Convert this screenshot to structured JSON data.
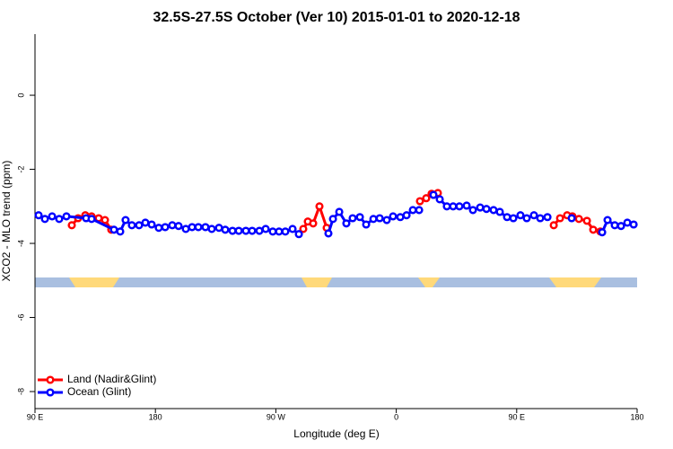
{
  "chart_data": {
    "type": "line",
    "title": "32.5S-27.5S October (Ver 10)   2015-01-01 to 2020-12-18",
    "x_label": "Longitude (deg E)",
    "y_label": "XCO2 - MLO trend (ppm)",
    "xlim": [
      90,
      540
    ],
    "ylim": [
      -8.46,
      1.65
    ],
    "xticks": [
      {
        "value": 90,
        "label": "90 E"
      },
      180,
      {
        "value": 270,
        "label": "90 W"
      },
      {
        "value": 360,
        "label": "0"
      },
      {
        "value": 450,
        "label": "90 E"
      },
      {
        "value": 540,
        "label": "180"
      }
    ],
    "yticks": [
      0,
      -2,
      -4,
      -6,
      -8
    ],
    "legend": "bottom-left",
    "series": [
      {
        "name": "Land (Nadir&Glint)",
        "color": "#ff0000",
        "x": [
          117.5,
          122.2,
          127.6,
          132.3,
          137.6,
          142.3,
          147.0,
          null,
          290.5,
          293.9,
          297.9,
          302.6,
          308.0,
          null,
          377.7,
          382.4,
          386.4,
          391.1,
          null,
          477.7,
          482.4,
          487.7,
          491.7,
          496.5,
          502.5,
          507.2,
          512.5
        ],
        "values": [
          -3.51,
          -3.32,
          -3.24,
          -3.27,
          -3.32,
          -3.37,
          -3.63,
          null,
          -3.61,
          -3.41,
          -3.46,
          -3.0,
          -3.58,
          null,
          -2.86,
          -2.78,
          -2.66,
          -2.64,
          null,
          -3.51,
          -3.32,
          -3.24,
          -3.27,
          -3.34,
          -3.39,
          -3.63,
          -3.68
        ]
      },
      {
        "name": "Ocean (Glint)",
        "color": "#0000ff",
        "x": [
          92.7,
          97.4,
          102.8,
          108.1,
          113.5,
          128.2,
          132.3,
          149.0,
          153.7,
          157.7,
          162.4,
          167.8,
          172.5,
          177.2,
          182.5,
          187.3,
          192.6,
          197.3,
          202.7,
          207.4,
          212.1,
          217.4,
          222.1,
          227.5,
          232.2,
          237.6,
          242.3,
          247.6,
          252.3,
          257.7,
          262.4,
          267.7,
          272.4,
          277.1,
          282.5,
          287.2,
          null,
          309.3,
          312.7,
          317.4,
          322.7,
          327.4,
          332.8,
          337.5,
          342.9,
          347.6,
          352.9,
          357.6,
          363.0,
          367.7,
          372.4,
          377.1,
          null,
          387.8,
          392.5,
          397.8,
          402.5,
          407.2,
          412.6,
          417.3,
          422.7,
          427.4,
          432.7,
          437.4,
          442.8,
          447.5,
          452.8,
          457.5,
          462.9,
          467.6,
          473.0,
          null,
          491.1,
          null,
          513.9,
          517.9,
          523.3,
          528.0,
          532.7,
          537.4
        ],
        "values": [
          -3.24,
          -3.34,
          -3.27,
          -3.34,
          -3.27,
          -3.32,
          -3.34,
          -3.63,
          -3.68,
          -3.37,
          -3.51,
          -3.51,
          -3.44,
          -3.49,
          -3.58,
          -3.56,
          -3.51,
          -3.53,
          -3.61,
          -3.56,
          -3.56,
          -3.56,
          -3.61,
          -3.58,
          -3.63,
          -3.66,
          -3.66,
          -3.66,
          -3.66,
          -3.66,
          -3.61,
          -3.68,
          -3.68,
          -3.68,
          -3.61,
          -3.75,
          null,
          -3.73,
          -3.34,
          -3.15,
          -3.46,
          -3.32,
          -3.29,
          -3.49,
          -3.34,
          -3.32,
          -3.37,
          -3.27,
          -3.29,
          -3.24,
          -3.1,
          -3.1,
          null,
          -2.69,
          -2.81,
          -3.0,
          -3.0,
          -3.0,
          -2.98,
          -3.1,
          -3.03,
          -3.07,
          -3.1,
          -3.15,
          -3.29,
          -3.32,
          -3.24,
          -3.32,
          -3.24,
          -3.32,
          -3.29,
          null,
          -3.32,
          null,
          -3.7,
          -3.37,
          -3.51,
          -3.53,
          -3.44,
          -3.49
        ]
      }
    ]
  }
}
